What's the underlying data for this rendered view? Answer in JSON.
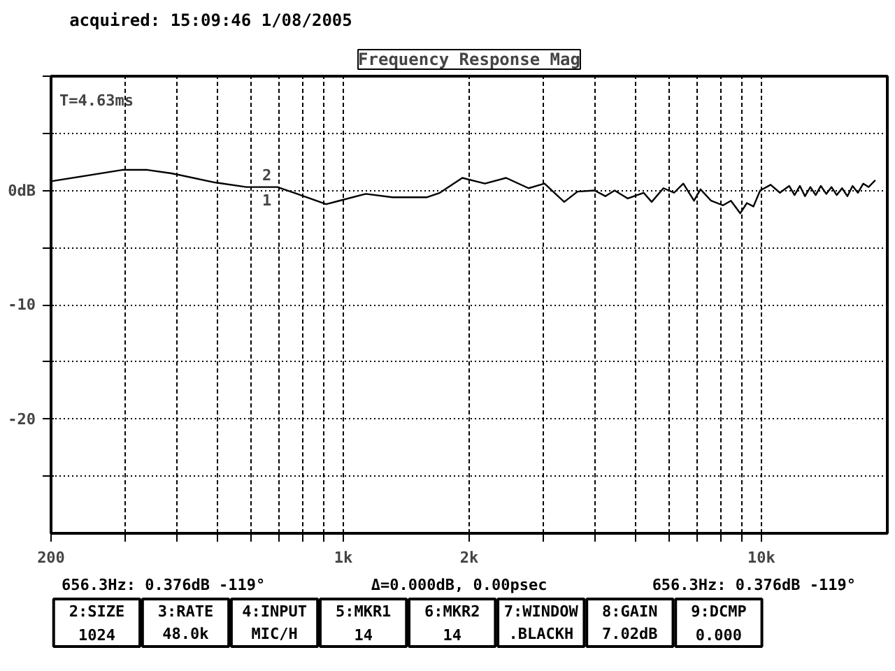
{
  "chart_data": {
    "type": "line",
    "title": "Frequency Response Mag",
    "log": "x",
    "grid": true,
    "xlim": [
      200,
      20000
    ],
    "ylim": [
      -30,
      10
    ],
    "xticks": [
      200,
      {
        "value": 300,
        "label": null
      },
      {
        "value": 400,
        "label": null
      },
      {
        "value": 500,
        "label": null
      },
      {
        "value": 600,
        "label": null
      },
      {
        "value": 700,
        "label": null
      },
      {
        "value": 800,
        "label": null
      },
      {
        "value": 900,
        "label": null
      },
      {
        "value": 1000,
        "label": "1k"
      },
      {
        "value": 2000,
        "label": "2k"
      },
      {
        "value": 3000,
        "label": null
      },
      {
        "value": 4000,
        "label": null
      },
      {
        "value": 5000,
        "label": null
      },
      {
        "value": 6000,
        "label": null
      },
      {
        "value": 7000,
        "label": null
      },
      {
        "value": 8000,
        "label": null
      },
      {
        "value": 9000,
        "label": null
      },
      {
        "value": 10000,
        "label": "10k"
      }
    ],
    "yticks": [
      {
        "value": 10,
        "label": null
      },
      {
        "value": 5,
        "label": null
      },
      {
        "value": 0,
        "label": "0dB"
      },
      {
        "value": -5,
        "label": null
      },
      -10,
      {
        "value": -15,
        "label": null
      },
      -20,
      {
        "value": -25,
        "label": null
      }
    ],
    "series": [
      {
        "color": "#000000",
        "x": [
          200,
          296,
          340,
          388,
          493,
          587,
          695,
          763,
          910,
          978,
          1132,
          1310,
          1582,
          1702,
          1926,
          2181,
          2450,
          2773,
          3028,
          3375,
          3631,
          3991,
          4233,
          4455,
          4790,
          5227,
          5463,
          5830,
          6180,
          6503,
          6898,
          7150,
          7580,
          8090,
          8455,
          8900,
          9230,
          9570,
          9930,
          10520,
          11070,
          11650,
          12000,
          12360,
          12710,
          13090,
          13480,
          13870,
          14290,
          14710,
          15140,
          15590,
          16050,
          16520,
          17010,
          17520,
          18040,
          18720
        ],
        "values": [
          0.8,
          1.8,
          1.8,
          1.5,
          0.7,
          0.3,
          0.3,
          -0.2,
          -1.2,
          -0.9,
          -0.3,
          -0.6,
          -0.6,
          -0.2,
          1.1,
          0.6,
          1.1,
          0.2,
          0.6,
          -1.0,
          -0.1,
          0.0,
          -0.5,
          0.0,
          -0.7,
          -0.2,
          -1.0,
          0.2,
          -0.2,
          0.6,
          -0.9,
          0.1,
          -0.9,
          -1.3,
          -0.9,
          -2.0,
          -1.1,
          -1.4,
          0.0,
          0.5,
          -0.2,
          0.4,
          -0.4,
          0.4,
          -0.5,
          0.3,
          -0.4,
          0.4,
          -0.3,
          0.3,
          -0.4,
          0.2,
          -0.5,
          0.4,
          -0.2,
          0.6,
          0.3,
          0.9
        ]
      }
    ],
    "annotations": [
      "acquired:      15:09:46      1/08/2005",
      "T=4.63ms",
      {
        "text": "1",
        "x": 656.3,
        "y": 0.376
      },
      {
        "text": "2",
        "x": 656.3,
        "y": 0.376
      },
      "656.3Hz: 0.376dB    -119°",
      "Δ=0.000dB, 0.00psec",
      "656.3Hz: 0.376dB    -119°",
      "2:SIZE\n1024",
      "3:RATE\n48.0k",
      "4:INPUT\nMIC/H",
      "5:MKR1\n14",
      "6:MKR2\n14",
      "7:WINDOW\n.BLACKH",
      "8:GAIN\n7.02dB",
      "9:DCMP\n0.000"
    ]
  }
}
